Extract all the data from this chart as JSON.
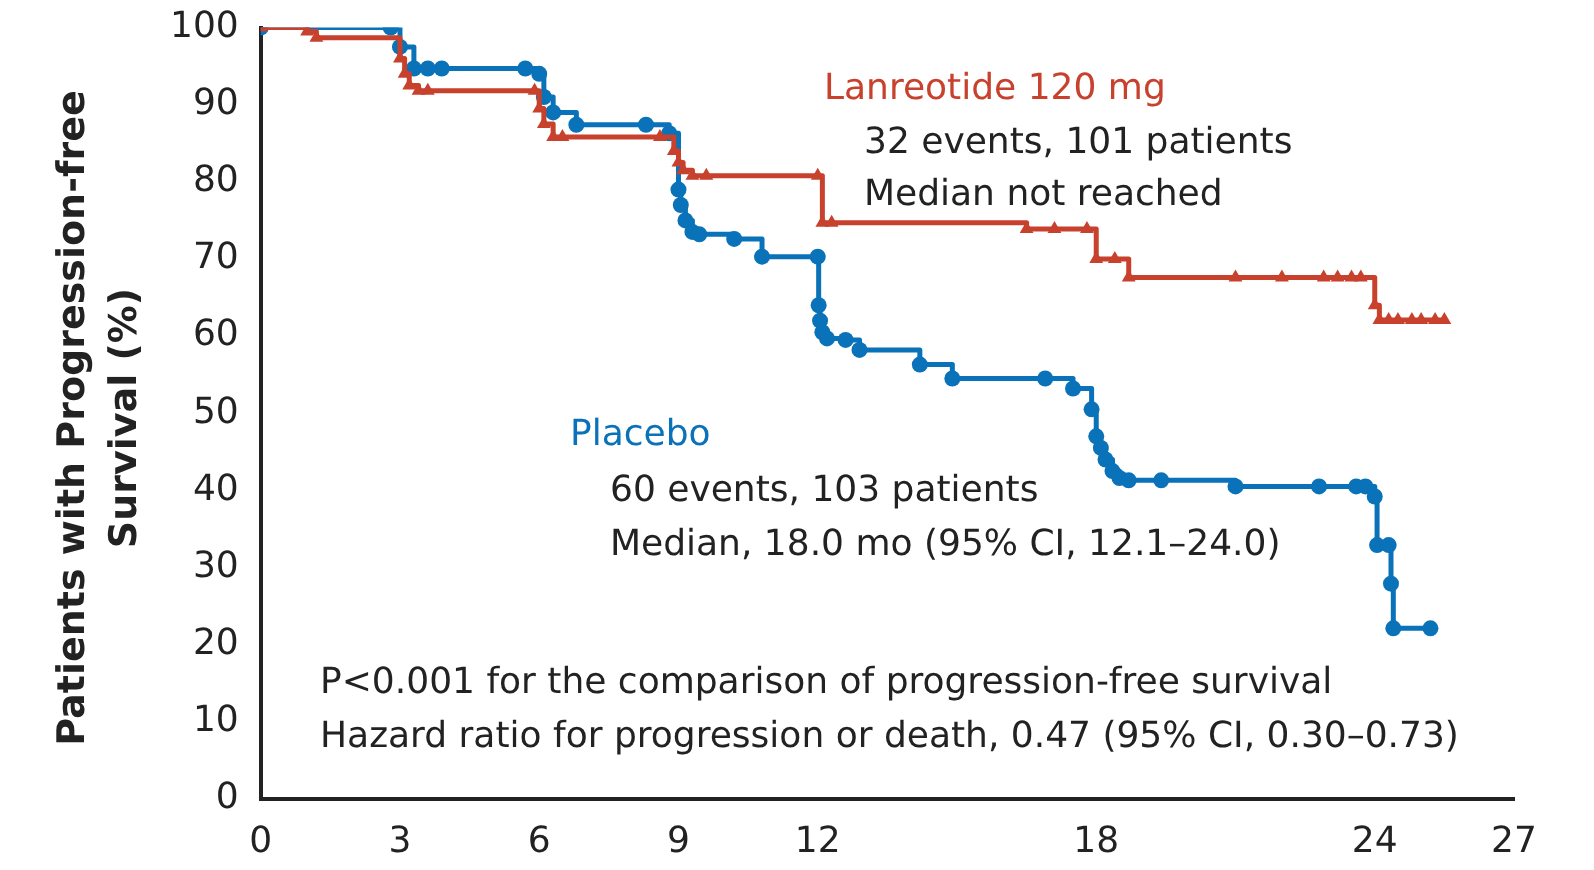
{
  "chart_data": {
    "type": "step",
    "ylabel": "Patients with Progression-free Survival (%)",
    "xlim": [
      0,
      27
    ],
    "xticks": [
      0,
      3,
      6,
      9,
      12,
      18,
      24,
      27
    ],
    "ylim": [
      0,
      100
    ],
    "yticks": [
      0,
      10,
      20,
      30,
      40,
      50,
      60,
      70,
      80,
      90,
      100
    ],
    "grid": false,
    "legend": false,
    "line_style": "solid",
    "series": [
      {
        "name": "Lanreotide 120 mg",
        "color": "#c8412d",
        "marker": "triangle",
        "x": [
          0,
          1.0,
          1.2,
          3.0,
          3.1,
          3.2,
          3.4,
          3.6,
          5.9,
          6.0,
          6.1,
          6.3,
          6.5,
          8.6,
          8.9,
          9.0,
          9.1,
          9.3,
          9.6,
          12.0,
          12.1,
          12.3,
          16.5,
          17.1,
          17.8,
          18.0,
          18.4,
          18.7,
          21.0,
          22.0,
          22.9,
          23.2,
          23.5,
          23.7,
          24.0,
          24.1,
          24.3,
          24.5,
          24.8,
          25.0,
          25.3,
          25.5
        ],
        "values": [
          100,
          99.5,
          98.7,
          96,
          94,
          92.5,
          91.8,
          91.8,
          91.8,
          89.5,
          87.5,
          85.8,
          85.8,
          85.8,
          84,
          82.5,
          81.5,
          80.8,
          80.8,
          80.8,
          74.7,
          74.7,
          73.9,
          73.9,
          73.9,
          70,
          70,
          67.6,
          67.6,
          67.6,
          67.6,
          67.6,
          67.6,
          67.6,
          64,
          62.1,
          62.1,
          62.1,
          62.1,
          62.1,
          62.1,
          62.1
        ]
      },
      {
        "name": "Placebo",
        "color": "#0a72b8",
        "marker": "circle",
        "x": [
          0,
          2.8,
          3.0,
          3.3,
          3.6,
          3.9,
          5.7,
          6.0,
          6.1,
          6.3,
          6.8,
          8.3,
          8.8,
          9.0,
          9.05,
          9.15,
          9.3,
          9.45,
          10.2,
          10.8,
          12.0,
          12.02,
          12.05,
          12.1,
          12.2,
          12.6,
          12.9,
          14.2,
          14.9,
          16.9,
          17.5,
          17.9,
          18.0,
          18.1,
          18.2,
          18.35,
          18.5,
          18.7,
          19.4,
          21.0,
          22.8,
          23.6,
          23.8,
          24.0,
          24.05,
          24.3,
          24.35,
          24.4,
          25.2
        ],
        "values": [
          100,
          100,
          97.5,
          94.7,
          94.7,
          94.7,
          94.7,
          94,
          91,
          89,
          87.4,
          87.4,
          86.3,
          79,
          77,
          75,
          73.5,
          73.2,
          72.6,
          70.3,
          70.3,
          64,
          62,
          60.5,
          59.7,
          59.5,
          58.2,
          56.3,
          54.5,
          54.5,
          53.2,
          50.5,
          47,
          45.5,
          44,
          42.5,
          41.6,
          41.3,
          41.3,
          40.5,
          40.5,
          40.5,
          40.5,
          39.2,
          32.9,
          32.9,
          27.9,
          22.1,
          22.1
        ]
      }
    ],
    "annotations": [
      "32 events, 101 patients",
      "Median not reached",
      "60 events, 103 patients",
      "Median, 18.0 mo (95% CI, 12.1–24.0)",
      "P<0.001 for the comparison of progression-free survival",
      "Hazard ratio for progression or death, 0.47 (95% CI, 0.30–0.73)"
    ]
  }
}
